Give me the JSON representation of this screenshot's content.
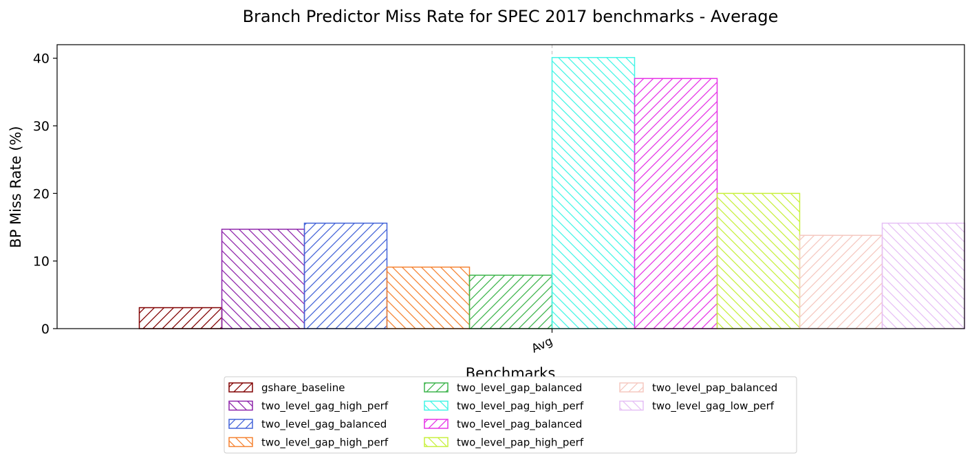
{
  "chart_data": {
    "type": "bar",
    "title": "Branch Predictor Miss Rate for SPEC 2017 benchmarks - Average",
    "xlabel": "Benchmarks",
    "ylabel": "BP Miss Rate (%)",
    "categories": [
      "Avg"
    ],
    "ylim": [
      0,
      42
    ],
    "yticks": [
      0,
      10,
      20,
      30,
      40
    ],
    "grid": "x-axis dashed vertical line at category",
    "legend_placement": "bottom-center, 3 columns",
    "series": [
      {
        "name": "gshare_baseline",
        "values": [
          3.1
        ],
        "color": "#800000",
        "hatch": "/"
      },
      {
        "name": "two_level_gag_high_perf",
        "values": [
          14.7
        ],
        "color": "#8e24aa",
        "hatch": "\\"
      },
      {
        "name": "two_level_gag_balanced",
        "values": [
          15.6
        ],
        "color": "#4363d8",
        "hatch": "/"
      },
      {
        "name": "two_level_gap_high_perf",
        "values": [
          9.1
        ],
        "color": "#f58231",
        "hatch": "\\"
      },
      {
        "name": "two_level_gap_balanced",
        "values": [
          7.9
        ],
        "color": "#3cb44b",
        "hatch": "/"
      },
      {
        "name": "two_level_pag_high_perf",
        "values": [
          40.1
        ],
        "color": "#42f5e6",
        "hatch": "\\"
      },
      {
        "name": "two_level_pag_balanced",
        "values": [
          37.0
        ],
        "color": "#e632e6",
        "hatch": "/"
      },
      {
        "name": "two_level_pap_high_perf",
        "values": [
          20.0
        ],
        "color": "#c8f03c",
        "hatch": "\\"
      },
      {
        "name": "two_level_pap_balanced",
        "values": [
          13.8
        ],
        "color": "#f5c8c0",
        "hatch": "/"
      },
      {
        "name": "two_level_gag_low_perf",
        "values": [
          15.6
        ],
        "color": "#e6c0f5",
        "hatch": "\\"
      }
    ]
  }
}
